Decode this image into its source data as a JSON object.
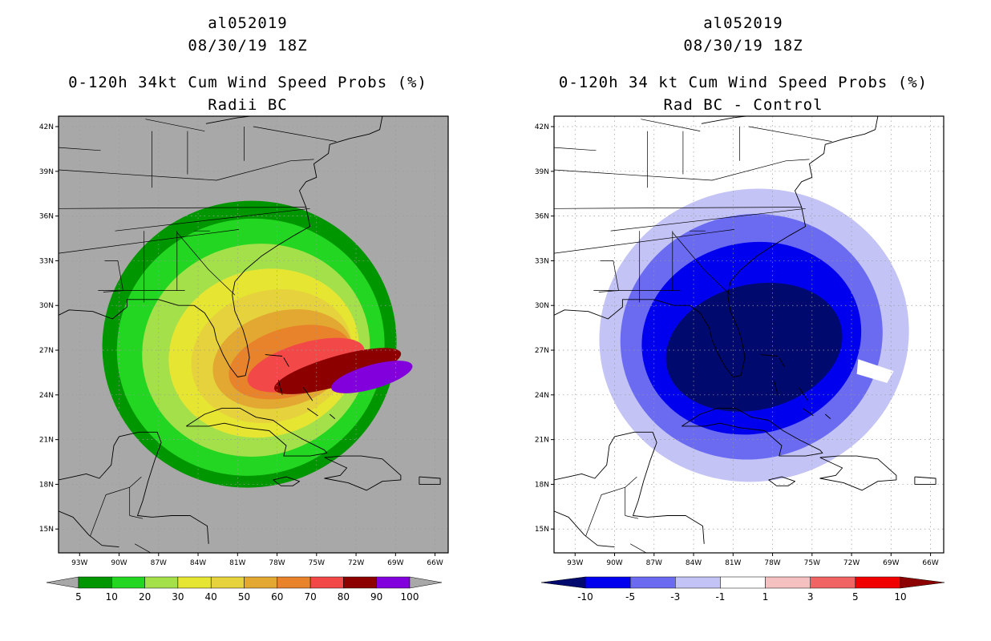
{
  "panels": [
    {
      "storm_id": "al052019",
      "datetime": "08/30/19 18Z",
      "product": "0-120h 34kt Cum Wind Speed Probs (%)",
      "subtitle": "Radii BC",
      "background": "#a8a8a8"
    },
    {
      "storm_id": "al052019",
      "datetime": "08/30/19 18Z",
      "product": "0-120h 34 kt Cum Wind Speed Probs (%)",
      "subtitle": "Rad BC - Control",
      "background": "#ffffff"
    }
  ],
  "chart_data": [
    {
      "type": "heatmap",
      "title": "0-120h 34kt Cum Wind Speed Probs (%) - Radii BC",
      "lat_labels": [
        "42N",
        "39N",
        "36N",
        "33N",
        "30N",
        "27N",
        "24N",
        "21N",
        "18N",
        "15N"
      ],
      "lon_labels": [
        "93W",
        "90W",
        "87W",
        "84W",
        "81W",
        "78W",
        "75W",
        "72W",
        "69W",
        "66W"
      ],
      "colorbar": {
        "tick_labels": [
          "5",
          "10",
          "20",
          "30",
          "40",
          "50",
          "60",
          "70",
          "80",
          "90",
          "100"
        ],
        "colors": [
          "#009600",
          "#22d622",
          "#a4e04a",
          "#e6e632",
          "#e6d23c",
          "#e2a831",
          "#e8822b",
          "#f34848",
          "#8c0000",
          "#8200dc"
        ]
      },
      "contour_levels": [
        {
          "min_pct": 5,
          "color": "#009600"
        },
        {
          "min_pct": 10,
          "color": "#22d622"
        },
        {
          "min_pct": 20,
          "color": "#a4e04a"
        },
        {
          "min_pct": 30,
          "color": "#e6e632"
        },
        {
          "min_pct": 40,
          "color": "#e6d23c"
        },
        {
          "min_pct": 50,
          "color": "#e2a831"
        },
        {
          "min_pct": 60,
          "color": "#e8822b"
        },
        {
          "min_pct": 70,
          "color": "#f34848"
        },
        {
          "min_pct": 80,
          "color": "#8c0000"
        },
        {
          "min_pct": 90,
          "color": "#8200dc"
        }
      ]
    },
    {
      "type": "heatmap",
      "title": "0-120h 34 kt Cum Wind Speed Probs (%) - Rad BC - Control",
      "lat_labels": [
        "42N",
        "39N",
        "36N",
        "33N",
        "30N",
        "27N",
        "24N",
        "21N",
        "18N",
        "15N"
      ],
      "lon_labels": [
        "93W",
        "90W",
        "87W",
        "84W",
        "81W",
        "78W",
        "75W",
        "72W",
        "69W",
        "66W"
      ],
      "colorbar": {
        "tick_labels": [
          "-10",
          "-5",
          "-3",
          "-1",
          "1",
          "3",
          "5",
          "10"
        ],
        "colors": [
          "#000a6e",
          "#0000ef",
          "#6b6bf2",
          "#c3c3f5",
          "#ffffff",
          "#f5c0c0",
          "#f06464",
          "#f00000",
          "#8c0000"
        ]
      },
      "contour_levels": [
        {
          "max_diff": -1,
          "color": "#c3c3f5"
        },
        {
          "max_diff": -3,
          "color": "#6b6bf2"
        },
        {
          "max_diff": -5,
          "color": "#0000ef"
        },
        {
          "max_diff": -10,
          "color": "#000a6e"
        }
      ]
    }
  ]
}
